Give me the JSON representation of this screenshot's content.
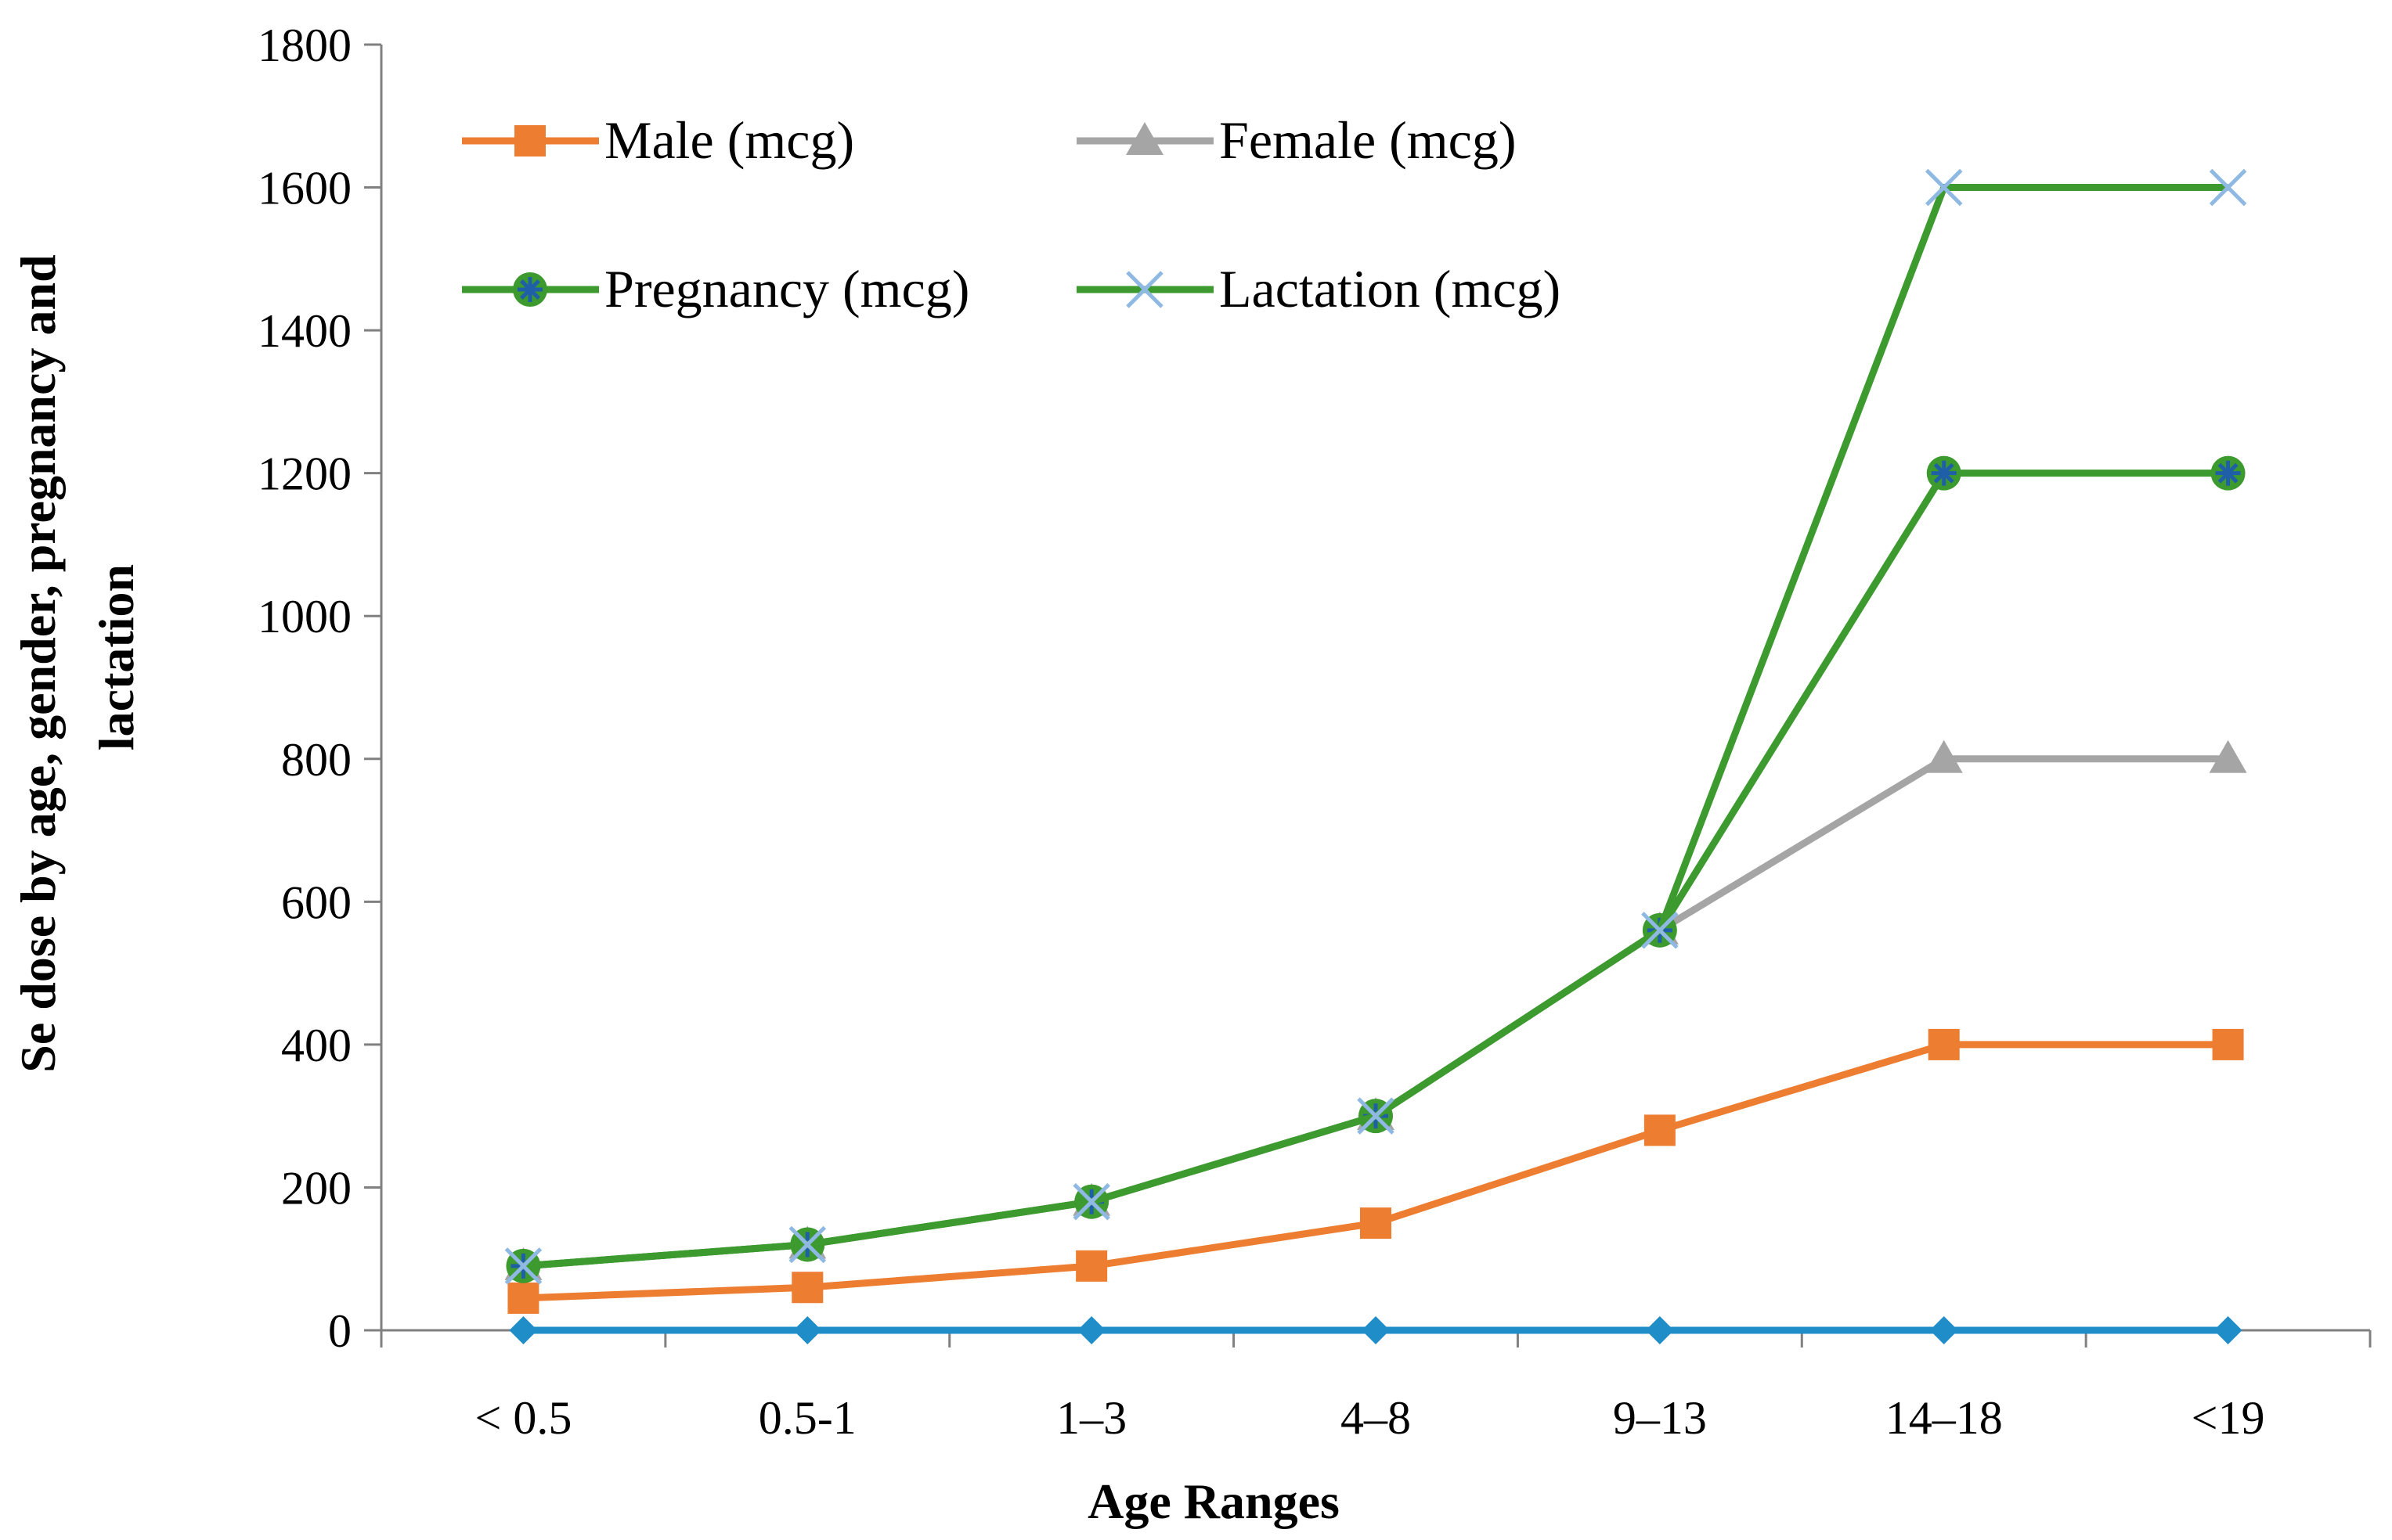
{
  "chart_data": {
    "type": "line",
    "title": "",
    "xlabel": "Age Ranges",
    "ylabel_lines": [
      "Se dose by age, gender, pregnancy and",
      "lactation"
    ],
    "ylim": [
      0,
      1800
    ],
    "yticks": [
      0,
      200,
      400,
      600,
      800,
      1000,
      1200,
      1400,
      1600,
      1800
    ],
    "ytick_labels": [
      "0",
      "200",
      "400",
      "600",
      "800",
      "1000",
      "1200",
      "1400",
      "1600",
      "1800"
    ],
    "grid": false,
    "legend_position": "top-left",
    "categories": [
      "< 0.5",
      "0.5-1",
      "1–3",
      "4–8",
      "9–13",
      "14–18",
      "<19"
    ],
    "series": [
      {
        "name": "",
        "color": "#1f8dc8",
        "marker": "diamond",
        "values": [
          0,
          0,
          0,
          0,
          0,
          0,
          0
        ]
      },
      {
        "name": "Male (mcg)",
        "color": "#ed7d31",
        "marker": "square",
        "values": [
          45,
          60,
          90,
          150,
          280,
          400,
          400
        ]
      },
      {
        "name": "Female (mcg)",
        "color": "#a5a5a5",
        "marker": "triangle",
        "values": [
          90,
          120,
          180,
          300,
          560,
          800,
          800
        ]
      },
      {
        "name": "Pregnancy (mcg)",
        "color": "#3c9a2f",
        "marker": "star",
        "marker_color": "#1f5fa8",
        "values": [
          90,
          120,
          180,
          300,
          560,
          1200,
          1200
        ]
      },
      {
        "name": "Lactation (mcg)",
        "color": "#3c9a2f",
        "marker": "x",
        "marker_color": "#8fb9e3",
        "values": [
          90,
          120,
          180,
          300,
          560,
          1600,
          1600
        ]
      }
    ],
    "legend": [
      {
        "label": "Male (mcg)",
        "series_index": 1
      },
      {
        "label": "Female (mcg)",
        "series_index": 2
      },
      {
        "label": "Pregnancy (mcg)",
        "series_index": 3
      },
      {
        "label": "Lactation (mcg)",
        "series_index": 4
      }
    ]
  }
}
